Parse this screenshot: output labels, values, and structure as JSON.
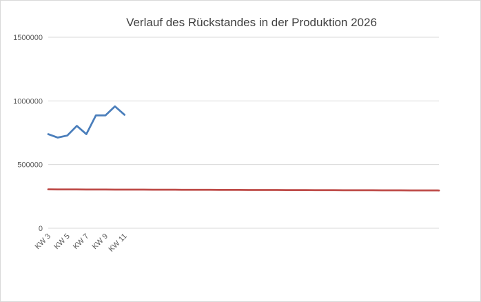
{
  "chart_data": {
    "type": "line",
    "title": "Verlauf des Rückstandes in der Produktion 2026",
    "categories": [
      "KW 3",
      null,
      "KW 5",
      null,
      "KW 7",
      null,
      "KW 9",
      null,
      "KW 11",
      null,
      null,
      null,
      null,
      null,
      null,
      null,
      null,
      null,
      null,
      null,
      null,
      null,
      null,
      null,
      null,
      null,
      null,
      null,
      null,
      null,
      null,
      null,
      null,
      null,
      null,
      null,
      null,
      null,
      null,
      null,
      null,
      null
    ],
    "series": [
      {
        "color": "#4a7ebb",
        "values": [
          739000,
          712000,
          728000,
          804000,
          739000,
          886000,
          886000,
          957000,
          891000,
          null,
          null,
          null,
          null,
          null,
          null,
          null,
          null,
          null,
          null,
          null,
          null,
          null,
          null,
          null,
          null,
          null,
          null,
          null,
          null,
          null,
          null,
          null,
          null,
          null,
          null,
          null,
          null,
          null,
          null,
          null,
          null,
          null
        ]
      },
      {
        "color": "#be4b48",
        "values": [
          305000,
          304800,
          304600,
          304400,
          304200,
          304000,
          303800,
          303600,
          303400,
          303200,
          303000,
          302800,
          302600,
          302400,
          302200,
          302000,
          301800,
          301600,
          301400,
          301200,
          301000,
          300800,
          300600,
          300400,
          300200,
          300000,
          299800,
          299600,
          299400,
          299200,
          299000,
          298800,
          298600,
          298400,
          298200,
          298000,
          297800,
          297600,
          297400,
          297200,
          297000,
          296800
        ]
      }
    ],
    "ylim": [
      0,
      1500000
    ],
    "yticks": [
      0,
      500000,
      1000000,
      1500000
    ],
    "grid": true
  }
}
